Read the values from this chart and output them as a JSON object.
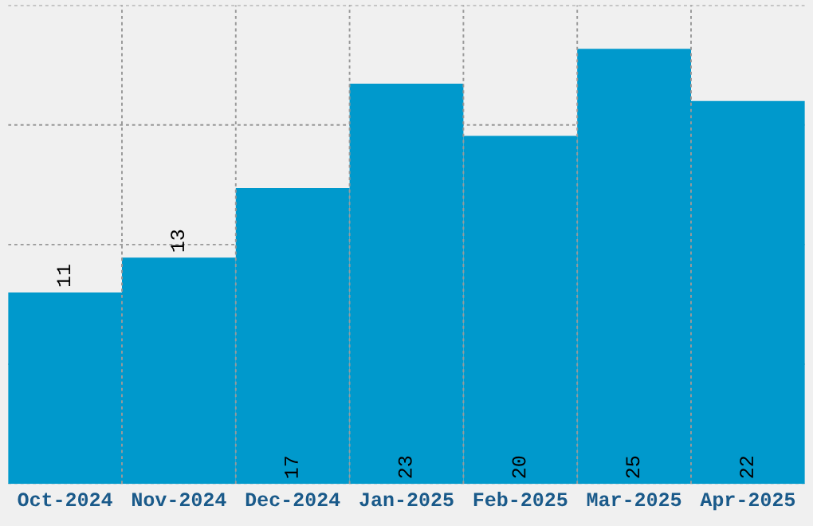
{
  "chart_data": {
    "type": "bar",
    "categories": [
      "Oct-2024",
      "Nov-2024",
      "Dec-2024",
      "Jan-2025",
      "Feb-2025",
      "Mar-2025",
      "Apr-2025"
    ],
    "values": [
      11,
      13,
      17,
      23,
      20,
      25,
      22
    ],
    "color": "#0099cc",
    "data_labels": true,
    "ylim": [
      0,
      27.5
    ],
    "yticks": [
      {
        "value": 0,
        "label": null
      },
      {
        "value": 6.875,
        "label": null
      },
      {
        "value": 13.75,
        "label": null
      },
      {
        "value": 20.625,
        "label": null
      },
      {
        "value": 27.5,
        "label": null
      }
    ],
    "tick_labels": "x",
    "grid": true
  }
}
